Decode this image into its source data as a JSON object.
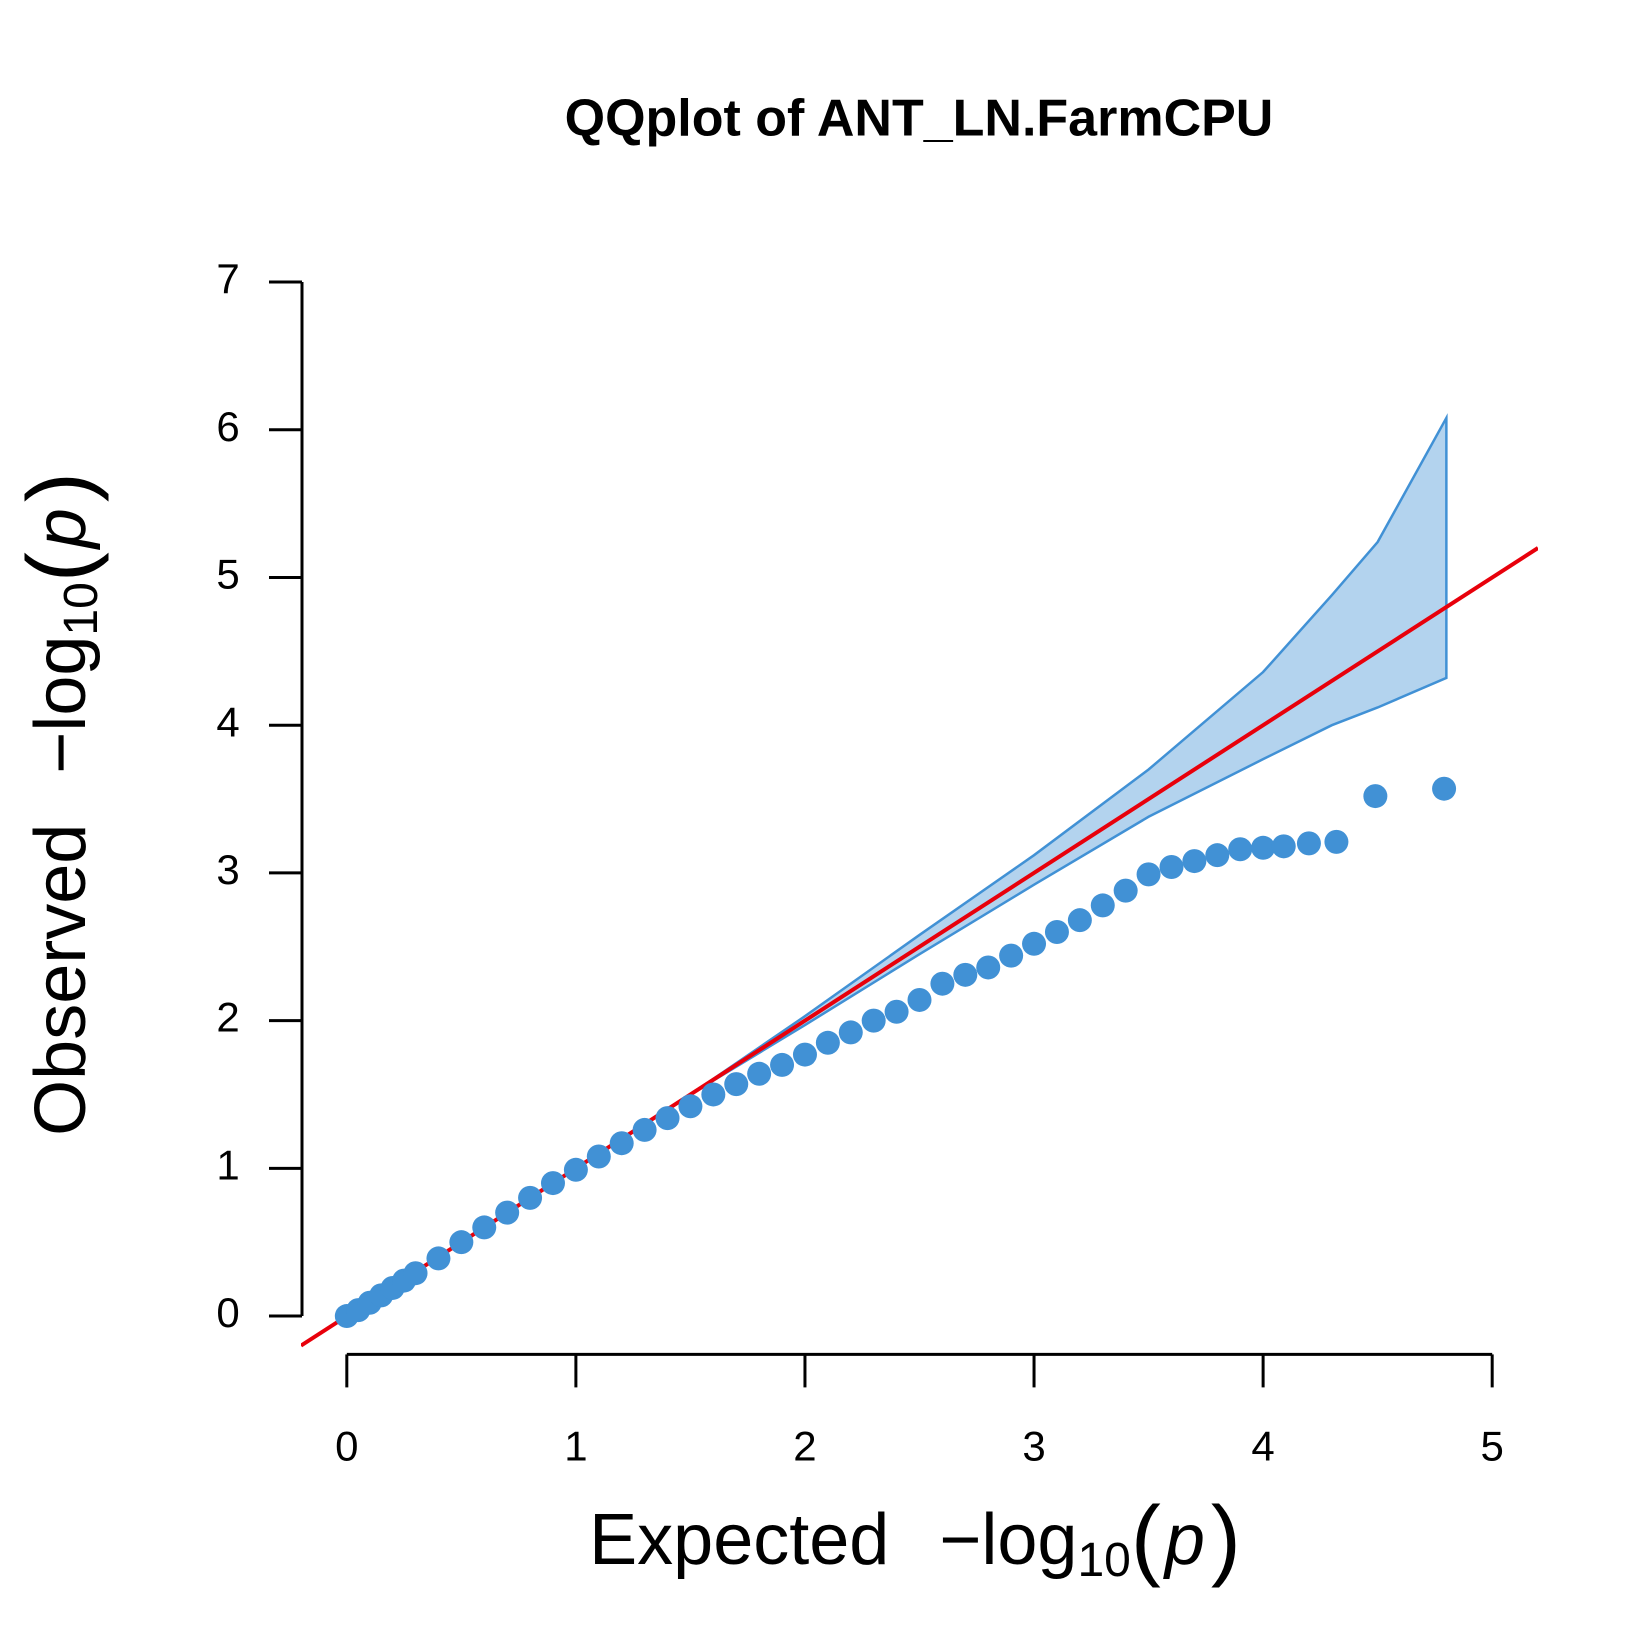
{
  "chart_data": {
    "type": "qq",
    "title": "QQplot of ANT_LN.FarmCPU",
    "x_label": [
      "Expected",
      "−log",
      "10",
      "(",
      "p",
      ")"
    ],
    "y_label": [
      "Observed",
      "−log",
      "10",
      "(",
      "p",
      ")"
    ],
    "xlim": [
      -0.2,
      5.2
    ],
    "ylim": [
      -0.28,
      7.28
    ],
    "xticks": [
      0,
      1,
      2,
      3,
      4,
      5
    ],
    "yticks": [
      0,
      1,
      2,
      3,
      4,
      5,
      6,
      7
    ],
    "reference_line_color": "#e8000b",
    "series": [
      {
        "color": "#4191d5",
        "x": [
          0,
          0.05,
          0.1,
          0.15,
          0.2,
          0.25,
          0.3,
          0.4,
          0.5,
          0.6,
          0.7,
          0.8,
          0.9,
          1.0,
          1.1,
          1.2,
          1.3,
          1.4,
          1.5,
          1.6,
          1.7,
          1.8,
          1.9,
          2.0,
          2.1,
          2.2,
          2.3,
          2.4,
          2.5,
          2.6,
          2.7,
          2.8,
          2.9,
          3.0,
          3.1,
          3.2,
          3.3,
          3.4,
          3.5,
          3.6,
          3.7,
          3.8,
          3.9,
          4.0,
          4.09,
          4.2,
          4.32,
          4.49,
          4.79
        ],
        "values": [
          0,
          0.04,
          0.09,
          0.14,
          0.19,
          0.24,
          0.29,
          0.39,
          0.5,
          0.6,
          0.7,
          0.8,
          0.9,
          0.99,
          1.08,
          1.17,
          1.26,
          1.34,
          1.42,
          1.5,
          1.57,
          1.64,
          1.7,
          1.77,
          1.85,
          1.92,
          2.0,
          2.06,
          2.14,
          2.25,
          2.31,
          2.36,
          2.44,
          2.52,
          2.6,
          2.68,
          2.78,
          2.88,
          2.99,
          3.04,
          3.08,
          3.12,
          3.16,
          3.17,
          3.18,
          3.2,
          3.21,
          3.52,
          3.57
        ]
      }
    ],
    "confidence_band": {
      "fill": "#b3d3ee",
      "stroke": "#4191d5",
      "x": [
        1.5,
        2,
        2.5,
        3,
        3.5,
        4,
        4.3,
        4.5,
        4.8
      ],
      "upper": [
        1.5,
        2.03,
        2.58,
        3.12,
        3.7,
        4.36,
        4.88,
        5.24,
        6.08
      ],
      "lower": [
        1.5,
        1.97,
        2.45,
        2.92,
        3.38,
        3.77,
        4.0,
        4.12,
        4.32
      ]
    }
  }
}
